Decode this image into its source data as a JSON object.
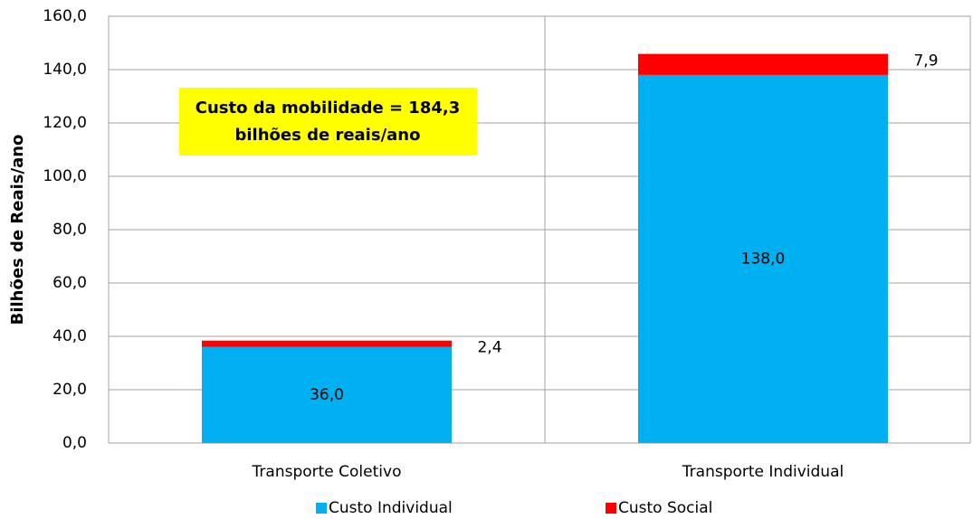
{
  "chart_data": {
    "type": "stacked_bar",
    "y_label": "Bilhões de Reais/ano",
    "annotation": [
      "Custo da mobilidade = 184,3",
      "bilhões de reais/ano"
    ],
    "categories": [
      "Transporte Coletivo",
      "Transporte Individual"
    ],
    "series": [
      {
        "name": "Custo Individual",
        "color": "#00b0f0",
        "values": [
          36.0,
          138.0
        ],
        "value_labels": [
          "36,0",
          "138,0"
        ]
      },
      {
        "name": "Custo Social",
        "color": "#ff0000",
        "values": [
          2.4,
          7.9
        ],
        "value_labels": [
          "2,4",
          "7,9"
        ]
      }
    ],
    "ylim": [
      0,
      160
    ],
    "yticks": [
      {
        "value": 0,
        "label": "0,0"
      },
      {
        "value": 20,
        "label": "20,0"
      },
      {
        "value": 40,
        "label": "40,0"
      },
      {
        "value": 60,
        "label": "60,0"
      },
      {
        "value": 80,
        "label": "80,0"
      },
      {
        "value": 100,
        "label": "100,0"
      },
      {
        "value": 120,
        "label": "120,0"
      },
      {
        "value": 140,
        "label": "140,0"
      },
      {
        "value": 160,
        "label": "160,0"
      }
    ],
    "grid": true,
    "legend": "bottom"
  }
}
